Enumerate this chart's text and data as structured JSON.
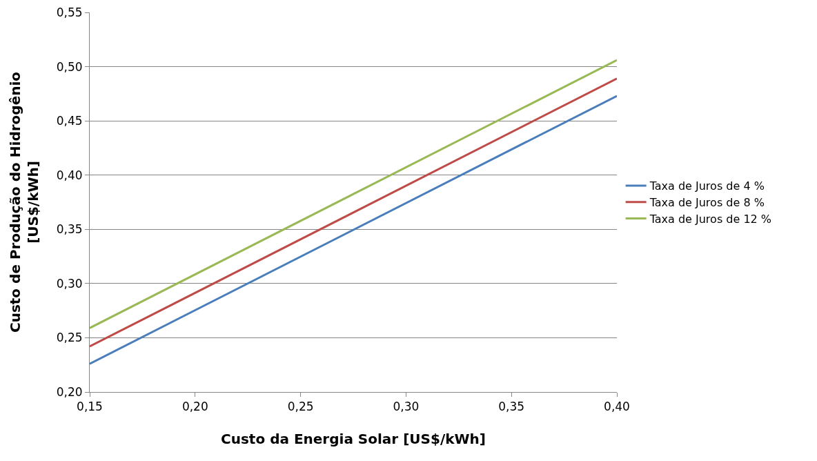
{
  "chart_data": {
    "type": "line",
    "xlabel": "Custo da Energia Solar [US$/kWh]",
    "ylabel": "Custo de Produção do Hidrogênio\n[US$/kWh]",
    "x": [
      0.15,
      0.4
    ],
    "series": [
      {
        "name": "Taxa de Juros de 4 %",
        "color": "#4a7ebb",
        "values": [
          0.226,
          0.473
        ]
      },
      {
        "name": "Taxa de Juros de 8 %",
        "color": "#be4b48",
        "values": [
          0.242,
          0.489
        ]
      },
      {
        "name": "Taxa de Juros de 12 %",
        "color": "#98b954",
        "values": [
          0.259,
          0.506
        ]
      }
    ],
    "xlim": [
      0.15,
      0.4
    ],
    "xticks": [
      {
        "value": 0.15,
        "label": "0,15"
      },
      {
        "value": 0.2,
        "label": "0,20"
      },
      {
        "value": 0.25,
        "label": "0,25"
      },
      {
        "value": 0.3,
        "label": "0,30"
      },
      {
        "value": 0.35,
        "label": "0,35"
      },
      {
        "value": 0.4,
        "label": "0,40"
      }
    ],
    "ylim": [
      0.2,
      0.55
    ],
    "yticks": [
      {
        "value": 0.2,
        "label": "0,20"
      },
      {
        "value": 0.25,
        "label": "0,25"
      },
      {
        "value": 0.3,
        "label": "0,30"
      },
      {
        "value": 0.35,
        "label": "0,35"
      },
      {
        "value": 0.4,
        "label": "0,40"
      },
      {
        "value": 0.45,
        "label": "0,45"
      },
      {
        "value": 0.5,
        "label": "0,50"
      },
      {
        "value": 0.55,
        "label": "0,55"
      }
    ],
    "grid": "y",
    "legend": "right",
    "marker": "none",
    "line_style": "solid"
  }
}
